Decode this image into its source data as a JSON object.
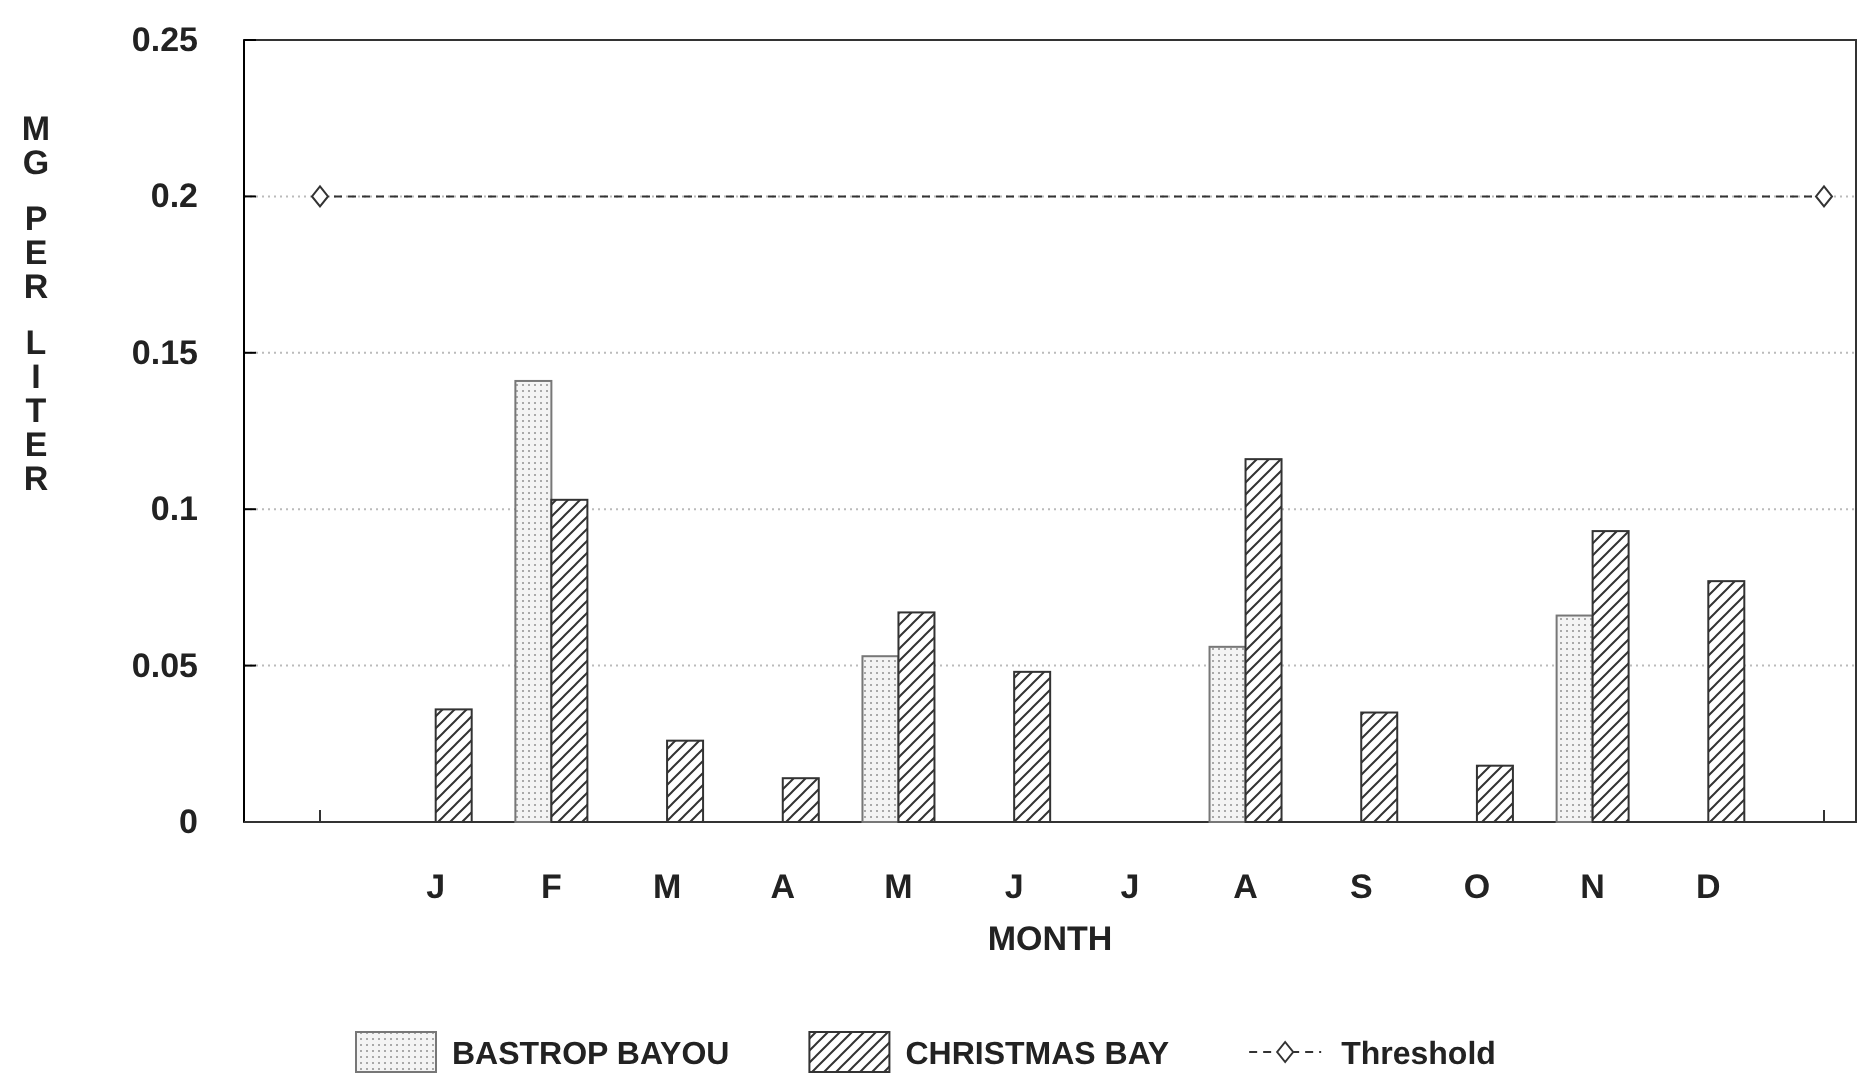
{
  "chart_data": {
    "type": "bar",
    "xlabel": "MONTH",
    "ylabel": "MG PER LITER",
    "categories": [
      null,
      "J",
      "F",
      "M",
      "A",
      "M",
      "J",
      "J",
      "A",
      "S",
      "O",
      "N",
      "D",
      null
    ],
    "series": [
      {
        "name": "BASTROP BAYOU",
        "color": "#777777",
        "values": [
          null,
          null,
          0.141,
          null,
          null,
          0.053,
          null,
          null,
          0.056,
          null,
          null,
          0.066,
          null,
          null
        ]
      },
      {
        "name": "CHRISTMAS BAY",
        "color": "#333333",
        "values": [
          null,
          0.036,
          0.103,
          0.026,
          0.014,
          0.067,
          0.048,
          null,
          0.116,
          0.035,
          0.018,
          0.093,
          0.077,
          null
        ]
      }
    ],
    "ylim": [
      0,
      0.25
    ],
    "yticks": [
      0,
      0.05,
      0.1,
      0.15,
      0.2,
      0.25
    ],
    "grid": "y",
    "legend": "bottom",
    "ref_lines": [
      {
        "axis": "y",
        "value": 0.2,
        "label": "Threshold",
        "color": "#333333",
        "line_style": "dashed"
      }
    ]
  }
}
